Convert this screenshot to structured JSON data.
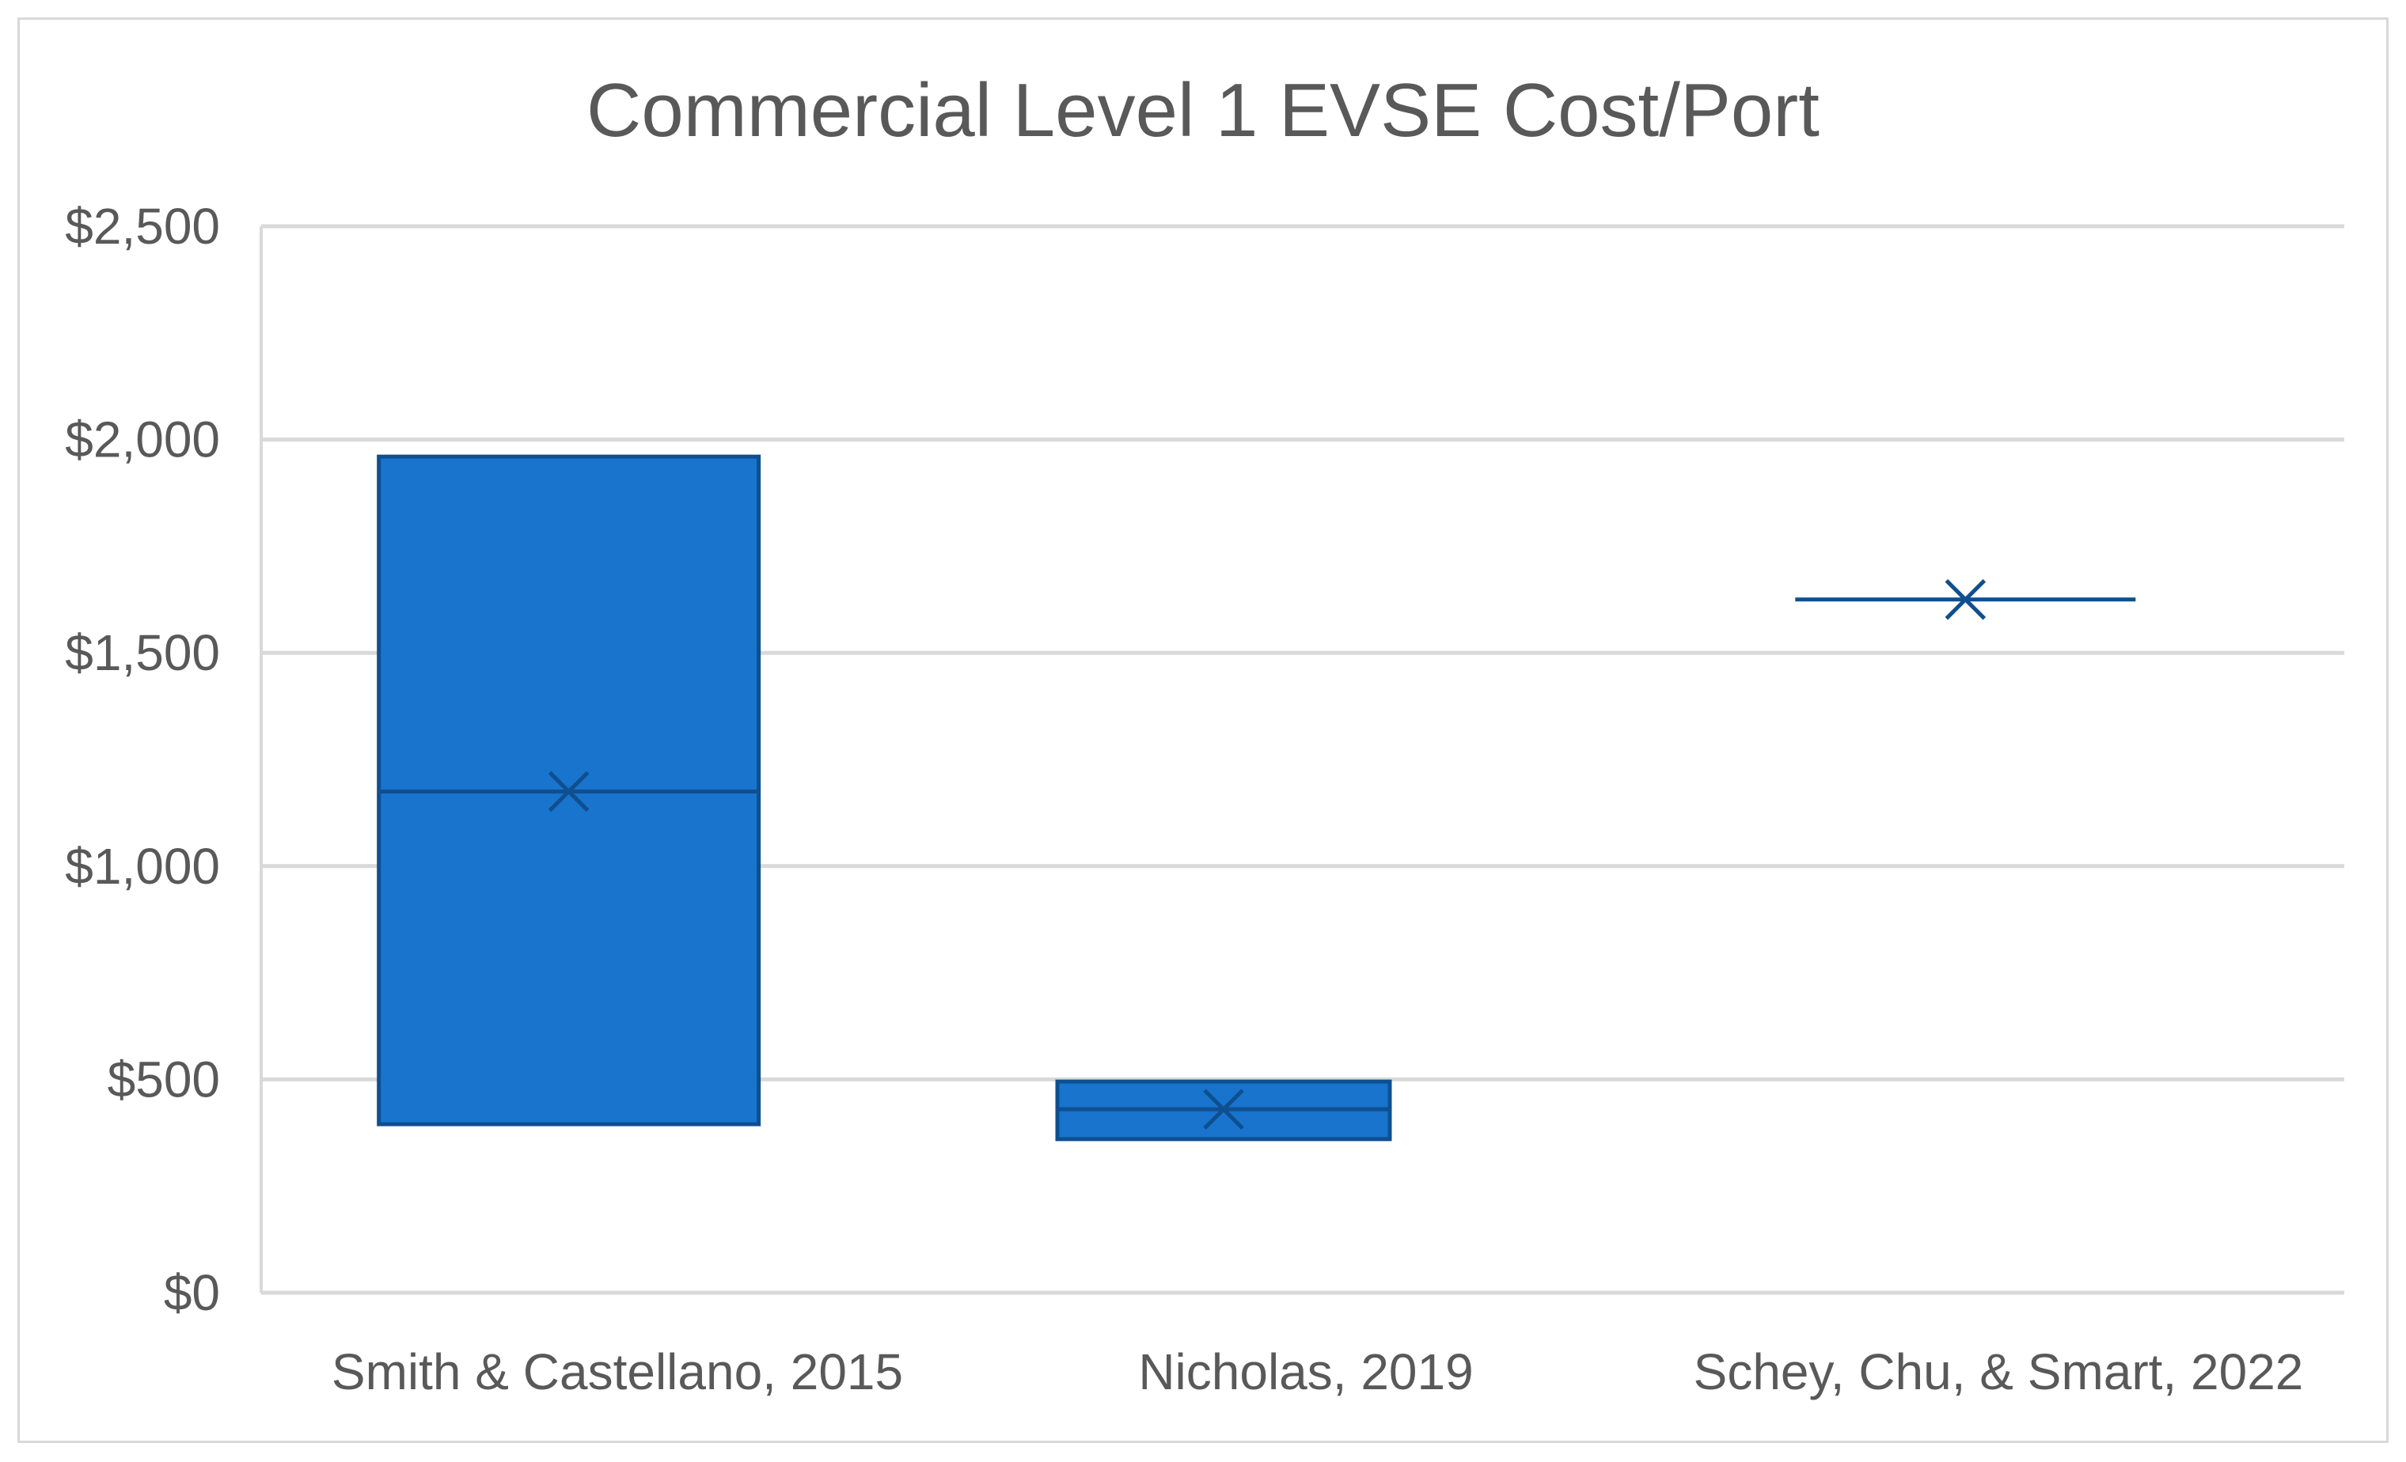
{
  "chart_data": {
    "type": "box",
    "title": "Commercial Level 1 EVSE Cost/Port",
    "xlabel": "",
    "ylabel": "",
    "ylim": [
      0,
      2500
    ],
    "y_ticks": [
      0,
      500,
      1000,
      1500,
      2000,
      2500
    ],
    "y_tick_labels": [
      "$0",
      "$500",
      "$1,000",
      "$1,500",
      "$2,000",
      "$2,500"
    ],
    "grid": true,
    "legend": "none",
    "categories": [
      "Smith & Castellano, 2015",
      "Nicholas, 2019",
      "Schey, Chu, & Smart, 2022"
    ],
    "boxes": [
      {
        "category": "Smith & Castellano, 2015",
        "low": 395,
        "high": 1960,
        "median": 1175,
        "mean": 1175
      },
      {
        "category": "Nicholas, 2019",
        "low": 360,
        "high": 495,
        "median": 430,
        "mean": 430
      },
      {
        "category": "Schey, Chu, & Smart, 2022",
        "low": 1625,
        "high": 1625,
        "median": 1625,
        "mean": 1625
      }
    ],
    "colors": {
      "box_fill": "#1874CD",
      "box_stroke": "#0F4F8F",
      "grid": "#D9D9D9",
      "text": "#595959"
    }
  }
}
